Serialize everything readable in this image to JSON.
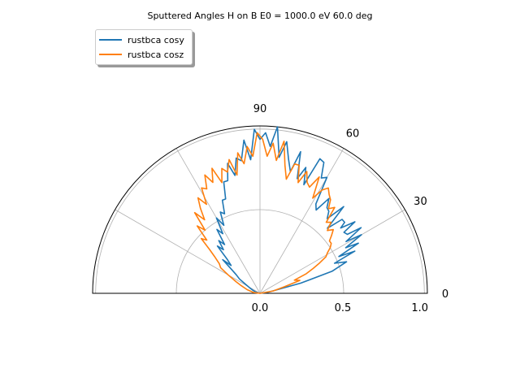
{
  "chart_data": {
    "type": "polar-line",
    "title": "Sputtered Angles H on B E0 = 1000.0 eV 60.0 deg",
    "theta_ticks": [
      "0",
      "30",
      "60",
      "90"
    ],
    "r_ticks": [
      "0.0",
      "0.5",
      "1.0"
    ],
    "rlim": [
      0,
      1.0
    ],
    "theta_range_deg": [
      0,
      180
    ],
    "grid": true,
    "legend": "upper-left",
    "series": [
      {
        "name": "rustbca cosy",
        "color": "#1f77b4",
        "theta_deg": [
          0,
          8,
          14,
          17,
          20,
          22,
          24,
          25,
          27,
          28,
          30,
          31,
          33,
          34,
          36,
          37,
          39,
          40,
          42,
          44,
          46,
          48,
          50,
          52,
          54,
          56,
          58,
          60,
          62,
          64,
          66,
          68,
          70,
          72,
          74,
          76,
          78,
          80,
          82,
          84,
          86,
          88,
          90,
          92,
          94,
          96,
          98,
          100,
          102,
          104,
          106,
          108,
          110,
          112,
          114,
          116,
          118,
          120,
          122,
          124,
          126,
          128,
          130,
          132,
          134,
          136,
          138,
          140,
          142,
          145,
          148,
          152,
          156,
          162,
          170,
          180
        ],
        "r": [
          0.0,
          0.05,
          0.25,
          0.45,
          0.55,
          0.48,
          0.62,
          0.52,
          0.66,
          0.58,
          0.7,
          0.6,
          0.72,
          0.63,
          0.62,
          0.71,
          0.62,
          0.66,
          0.66,
          0.56,
          0.72,
          0.6,
          0.64,
          0.65,
          0.7,
          0.6,
          0.63,
          0.8,
          0.78,
          0.87,
          0.88,
          0.7,
          0.8,
          0.72,
          0.88,
          0.75,
          0.82,
          0.92,
          0.82,
          1.0,
          0.88,
          0.96,
          0.92,
          0.98,
          0.8,
          0.92,
          0.8,
          0.82,
          0.72,
          0.8,
          0.7,
          0.7,
          0.6,
          0.6,
          0.52,
          0.54,
          0.46,
          0.52,
          0.42,
          0.46,
          0.36,
          0.4,
          0.34,
          0.38,
          0.28,
          0.24,
          0.3,
          0.22,
          0.18,
          0.15,
          0.1,
          0.07,
          0.05,
          0.03,
          0.01,
          0.0
        ]
      },
      {
        "name": "rustbca cosz",
        "color": "#ff7f0e",
        "theta_deg": [
          0,
          10,
          15,
          18,
          21,
          23,
          25,
          27,
          29,
          31,
          33,
          35,
          37,
          39,
          41,
          43,
          45,
          47,
          49,
          51,
          53,
          55,
          57,
          59,
          61,
          63,
          65,
          67,
          69,
          71,
          73,
          75,
          77,
          79,
          81,
          83,
          85,
          87,
          89,
          91,
          93,
          95,
          97,
          99,
          101,
          103,
          105,
          107,
          109,
          111,
          113,
          115,
          117,
          119,
          121,
          123,
          125,
          127,
          129,
          131,
          133,
          135,
          137,
          139,
          141,
          144,
          147,
          150,
          154,
          158,
          164,
          172,
          180
        ],
        "r": [
          0.0,
          0.08,
          0.15,
          0.25,
          0.22,
          0.3,
          0.35,
          0.4,
          0.45,
          0.47,
          0.5,
          0.52,
          0.52,
          0.55,
          0.58,
          0.55,
          0.6,
          0.58,
          0.68,
          0.65,
          0.7,
          0.72,
          0.75,
          0.72,
          0.65,
          0.78,
          0.7,
          0.72,
          0.78,
          0.7,
          0.8,
          0.8,
          0.7,
          0.78,
          0.92,
          0.8,
          0.9,
          0.82,
          0.92,
          0.96,
          0.82,
          0.88,
          0.78,
          0.85,
          0.72,
          0.82,
          0.75,
          0.78,
          0.7,
          0.8,
          0.72,
          0.78,
          0.7,
          0.72,
          0.62,
          0.68,
          0.62,
          0.55,
          0.62,
          0.5,
          0.55,
          0.45,
          0.48,
          0.4,
          0.35,
          0.3,
          0.28,
          0.22,
          0.16,
          0.12,
          0.08,
          0.04,
          0.0
        ]
      }
    ]
  }
}
